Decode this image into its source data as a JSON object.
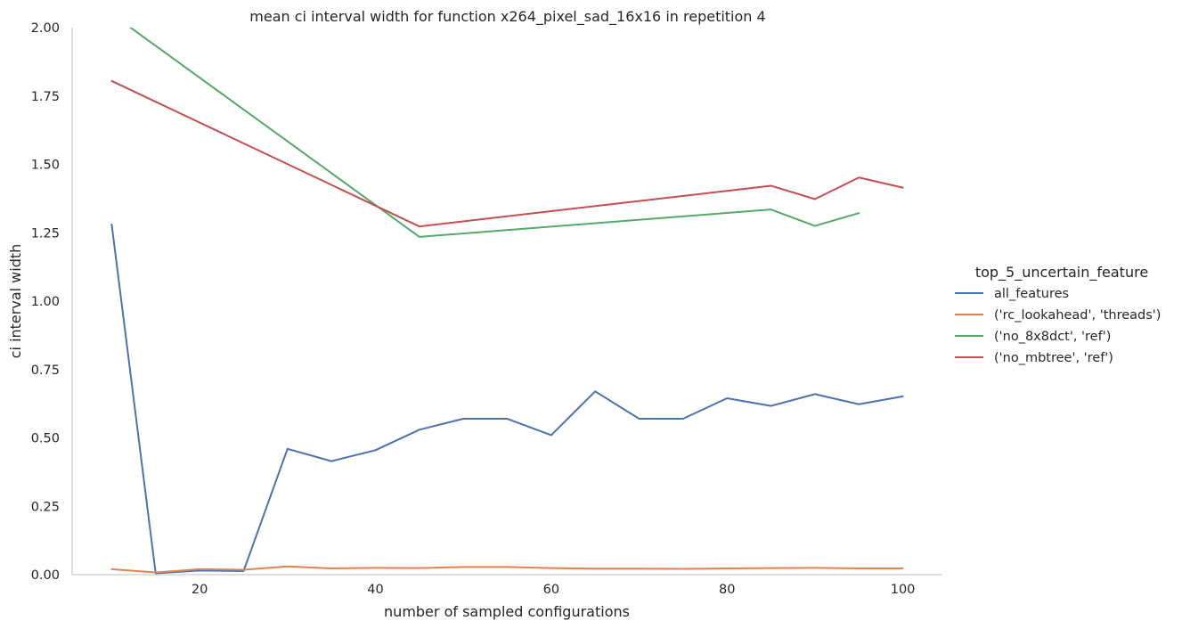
{
  "chart_data": {
    "type": "line",
    "title": "mean ci interval width for function x264_pixel_sad_16x16 in repetition 4",
    "xlabel": "number of sampled configurations",
    "ylabel": "ci interval width",
    "xlim": [
      5.5,
      104.5
    ],
    "ylim": [
      0,
      2.0
    ],
    "xticks": [
      20,
      40,
      60,
      80,
      100
    ],
    "yticks": [
      0.0,
      0.25,
      0.5,
      0.75,
      1.0,
      1.25,
      1.5,
      1.75,
      2.0
    ],
    "xtick_labels": [
      "20",
      "40",
      "60",
      "80",
      "100"
    ],
    "ytick_labels": [
      "0.00",
      "0.25",
      "0.50",
      "0.75",
      "1.00",
      "1.25",
      "1.50",
      "1.75",
      "2.00"
    ],
    "grid": false,
    "legend": {
      "title": "top_5_uncertain_feature",
      "placement": "right"
    },
    "series": [
      {
        "name": "all_features",
        "color": "#4c72b0",
        "x": [
          10,
          15,
          20,
          25,
          30,
          35,
          40,
          45,
          50,
          55,
          60,
          65,
          70,
          75,
          80,
          85,
          90,
          95,
          100
        ],
        "y": [
          1.28,
          0.005,
          0.015,
          0.013,
          0.46,
          0.415,
          0.455,
          0.53,
          0.57,
          0.57,
          0.51,
          0.67,
          0.57,
          0.57,
          0.645,
          0.617,
          0.66,
          0.623,
          0.652
        ]
      },
      {
        "name": "('rc_lookahead', 'threads')",
        "color": "#dd8452",
        "x": [
          10,
          15,
          20,
          25,
          30,
          35,
          40,
          45,
          50,
          55,
          60,
          65,
          70,
          75,
          80,
          85,
          90,
          95,
          100
        ],
        "y": [
          0.02,
          0.008,
          0.02,
          0.018,
          0.03,
          0.023,
          0.025,
          0.024,
          0.028,
          0.028,
          0.024,
          0.022,
          0.022,
          0.021,
          0.023,
          0.024,
          0.025,
          0.023,
          0.023
        ]
      },
      {
        "name": "('no_8x8dct', 'ref')",
        "color": "#55a868",
        "x": [
          10,
          45,
          85,
          90,
          95
        ],
        "y": [
          2.05,
          1.235,
          1.335,
          1.275,
          1.322
        ]
      },
      {
        "name": "('no_mbtree', 'ref')",
        "color": "#c44e52",
        "x": [
          10,
          45,
          85,
          90,
          95,
          100
        ],
        "y": [
          1.805,
          1.273,
          1.422,
          1.373,
          1.452,
          1.415
        ]
      }
    ]
  }
}
